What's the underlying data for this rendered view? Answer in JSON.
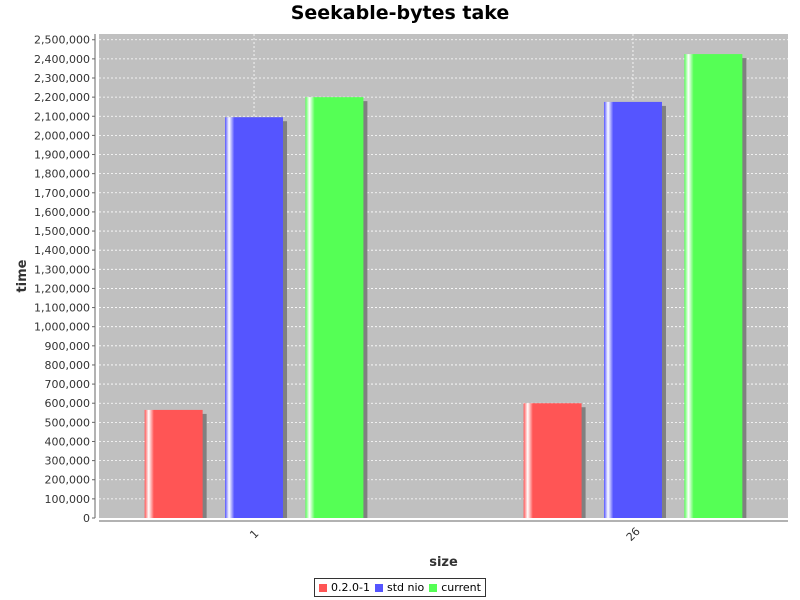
{
  "chart_data": {
    "type": "bar",
    "title": "Seekable-bytes take",
    "xlabel": "size",
    "ylabel": "time",
    "categories": [
      "1",
      "26"
    ],
    "series": [
      {
        "name": "0.2.0-1",
        "color": "#ff5555",
        "values": [
          565000,
          600000
        ]
      },
      {
        "name": "std nio",
        "color": "#5555ff",
        "values": [
          2095000,
          2175000
        ]
      },
      {
        "name": "current",
        "color": "#55ff55",
        "values": [
          2200000,
          2425000
        ]
      }
    ],
    "ylim": [
      0,
      2530000
    ],
    "yticks": [
      0,
      100000,
      200000,
      300000,
      400000,
      500000,
      600000,
      700000,
      800000,
      900000,
      1000000,
      1100000,
      1200000,
      1300000,
      1400000,
      1500000,
      1600000,
      1700000,
      1800000,
      1900000,
      2000000,
      2100000,
      2200000,
      2300000,
      2400000,
      2500000
    ],
    "grid": true,
    "legend_position": "bottom",
    "plot_background": "#c0c0c0",
    "grid_color": "#ffffff"
  }
}
